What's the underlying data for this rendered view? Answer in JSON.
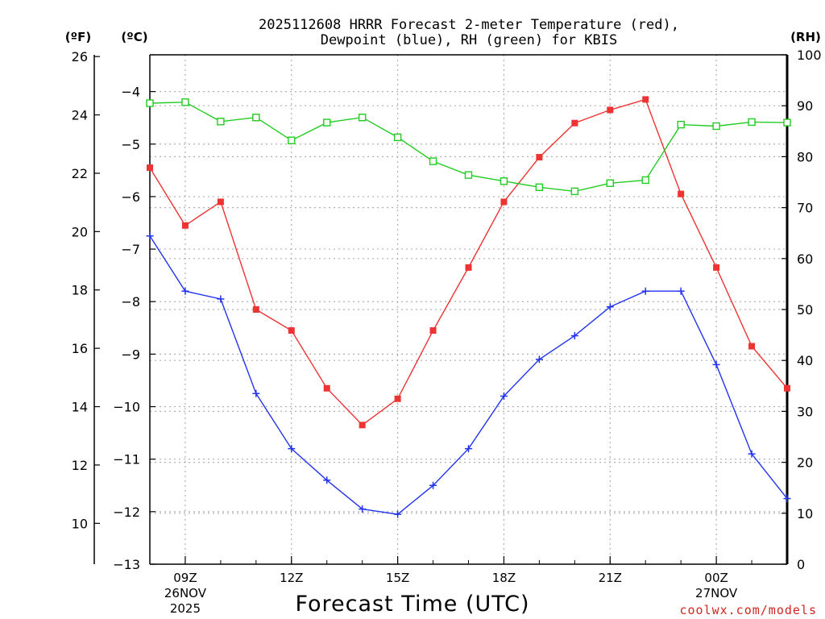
{
  "title_line1": "2025112608 HRRR Forecast 2-meter Temperature (red),",
  "title_line2": "Dewpoint (blue), RH (green) for KBIS",
  "axis_headers": {
    "fahrenheit": "(ºF)",
    "celsius": "(ºC)",
    "rh": "(RH)"
  },
  "xlabel": "Forecast Time (UTC)",
  "credit": "coolwx.com/models",
  "colors": {
    "temperature": "#ee3333",
    "dewpoint": "#2233ee",
    "rh": "#22cc22",
    "grid": "#b0b0b0"
  },
  "chart_data": {
    "type": "line",
    "title": "2025112608 HRRR Forecast 2-meter Temperature (red), Dewpoint (blue), RH (green) for KBIS",
    "xlabel": "Forecast Time (UTC)",
    "x": [
      8,
      9,
      10,
      11,
      12,
      13,
      14,
      15,
      16,
      17,
      18,
      19,
      20,
      21,
      22,
      23,
      24,
      25,
      26
    ],
    "x_unit": "hours after 2025-11-26 00Z",
    "xlim": [
      8,
      26
    ],
    "x_ticks": [
      {
        "x": 9,
        "label": "09Z",
        "sub1": "26NOV",
        "sub2": "2025"
      },
      {
        "x": 12,
        "label": "12Z",
        "sub1": "",
        "sub2": ""
      },
      {
        "x": 15,
        "label": "15Z",
        "sub1": "",
        "sub2": ""
      },
      {
        "x": 18,
        "label": "18Z",
        "sub1": "",
        "sub2": ""
      },
      {
        "x": 21,
        "label": "21Z",
        "sub1": "",
        "sub2": ""
      },
      {
        "x": 24,
        "label": "00Z",
        "sub1": "27NOV",
        "sub2": ""
      }
    ],
    "celsius_axis": {
      "range": [
        -13,
        -3.3
      ],
      "ticks": [
        -4,
        -5,
        -6,
        -7,
        -8,
        -9,
        -10,
        -11,
        -12,
        -13
      ],
      "tick_labels": [
        "−4",
        "−5",
        "−6",
        "−7",
        "−8",
        "−9",
        "−10",
        "−11",
        "−12",
        "−13"
      ]
    },
    "fahrenheit_axis": {
      "ticks": [
        26,
        24,
        22,
        20,
        18,
        16,
        14,
        12,
        10
      ]
    },
    "rh_axis": {
      "range": [
        0,
        100
      ],
      "ticks": [
        0,
        10,
        20,
        30,
        40,
        50,
        60,
        70,
        80,
        90,
        100
      ]
    },
    "series": [
      {
        "name": "2-meter Temperature",
        "axis": "celsius",
        "marker": "filled-square",
        "values": [
          -5.45,
          -6.55,
          -6.1,
          -8.15,
          -8.55,
          -9.65,
          -10.35,
          -9.85,
          -8.55,
          -7.35,
          -6.1,
          -5.25,
          -4.6,
          -4.35,
          -4.15,
          -5.95,
          -7.35,
          -8.85,
          -9.65
        ]
      },
      {
        "name": "Dewpoint",
        "axis": "celsius",
        "marker": "plus",
        "values": [
          -6.75,
          -7.8,
          -7.95,
          -9.75,
          -10.8,
          -11.4,
          -11.95,
          -12.05,
          -11.5,
          -10.8,
          -9.8,
          -9.1,
          -8.65,
          -8.1,
          -7.8,
          -7.8,
          -9.2,
          -10.9,
          -11.75
        ]
      },
      {
        "name": "Relative Humidity",
        "axis": "rh",
        "marker": "open-square",
        "values": [
          90.5,
          90.7,
          86.9,
          87.7,
          83.2,
          86.7,
          87.7,
          83.8,
          79.1,
          76.4,
          75.2,
          74.0,
          73.2,
          74.8,
          75.4,
          86.3,
          86.0,
          86.8,
          86.7
        ]
      }
    ]
  }
}
